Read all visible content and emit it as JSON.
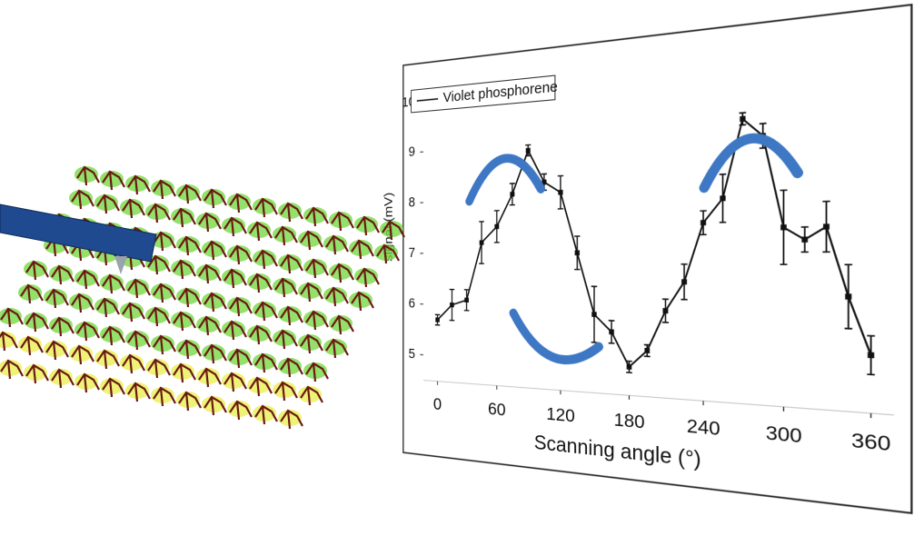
{
  "chart_data": {
    "type": "line",
    "xlabel": "Scanning angle (°)",
    "ylabel": "signal (mV)",
    "x": [
      0,
      15,
      30,
      45,
      60,
      75,
      90,
      105,
      120,
      135,
      150,
      165,
      180,
      195,
      210,
      225,
      240,
      255,
      270,
      285,
      300,
      315,
      330,
      345,
      360
    ],
    "series": [
      {
        "name": "Violet phosphorene",
        "color": "#111111",
        "values": [
          5.7,
          6.0,
          6.1,
          7.2,
          7.5,
          8.1,
          8.9,
          8.3,
          8.1,
          7.0,
          5.9,
          5.6,
          5.0,
          5.3,
          6.0,
          6.5,
          7.5,
          7.9,
          9.2,
          8.9,
          7.4,
          7.2,
          7.4,
          6.3,
          5.4
        ],
        "errors": [
          0.1,
          0.3,
          0.2,
          0.4,
          0.3,
          0.2,
          0.1,
          0.15,
          0.3,
          0.3,
          0.5,
          0.2,
          0.1,
          0.1,
          0.2,
          0.3,
          0.2,
          0.4,
          0.1,
          0.2,
          0.6,
          0.2,
          0.4,
          0.5,
          0.3
        ]
      }
    ],
    "xlim": [
      -15,
      375
    ],
    "xticks": [
      0,
      60,
      120,
      180,
      240,
      300,
      360
    ],
    "ylim": [
      4.5,
      10.2
    ],
    "yticks": [
      5,
      6,
      7,
      8,
      9,
      10
    ]
  }
}
